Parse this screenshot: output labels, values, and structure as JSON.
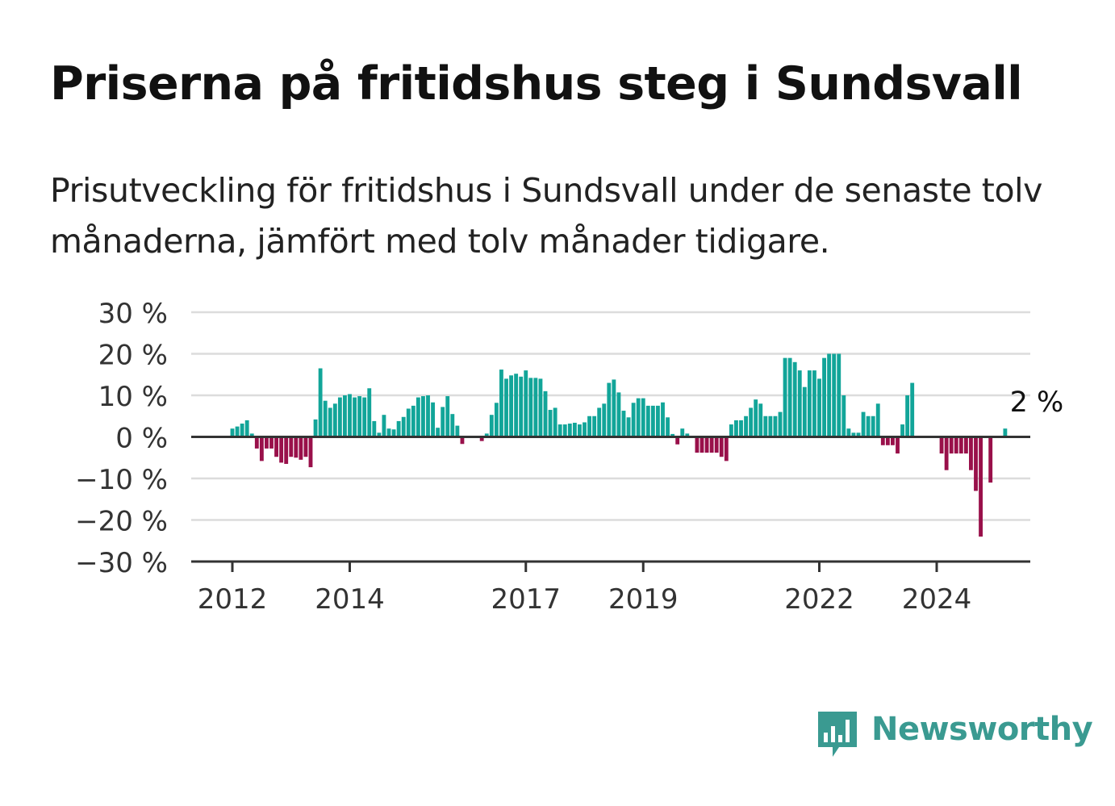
{
  "title": "Priserna på fritidshus steg i Sundsvall",
  "subtitle": "Prisutveckling för fritidshus i Sundsvall under de senaste tolv månaderna, jämfört med tolv månader tidigare.",
  "brand": {
    "name": "Newsworthy",
    "color": "#3a9a91"
  },
  "colors": {
    "positive": "#12a599",
    "negative": "#99104a",
    "grid": "#dcdcdc",
    "axis": "#333333"
  },
  "chart_data": {
    "type": "bar",
    "ylim": [
      -30,
      30
    ],
    "yticks": [
      30,
      20,
      10,
      0,
      -10,
      -20,
      -30
    ],
    "ytick_labels": [
      "30 %",
      "20 %",
      "10 %",
      "0 %",
      "−10 %",
      "−20 %",
      "−30 %"
    ],
    "xticks": [
      2012,
      2014,
      2017,
      2019,
      2022,
      2024
    ],
    "xtick_labels": [
      "2012",
      "2014",
      "2017",
      "2019",
      "2022",
      "2024"
    ],
    "x_start": 2012.0,
    "x_step": 0.08333,
    "values": [
      2.0,
      2.5,
      3.2,
      4.0,
      0.8,
      -2.8,
      -5.8,
      -2.8,
      -2.8,
      -4.8,
      -6.2,
      -6.5,
      -4.8,
      -5.0,
      -5.5,
      -4.8,
      -7.3,
      4.2,
      16.5,
      8.7,
      7.0,
      8.0,
      9.5,
      10.0,
      10.3,
      9.5,
      9.8,
      9.5,
      11.7,
      3.8,
      1.0,
      5.3,
      2.0,
      1.8,
      3.8,
      4.8,
      6.8,
      7.5,
      9.5,
      9.8,
      10.0,
      8.3,
      2.2,
      7.2,
      9.8,
      5.5,
      2.7,
      -1.7,
      0,
      0,
      0,
      -1.0,
      0.8,
      5.3,
      8.2,
      16.2,
      14.0,
      14.8,
      15.2,
      14.5,
      16.0,
      14.2,
      14.2,
      14.0,
      11.0,
      6.5,
      7.0,
      3.0,
      3.0,
      3.2,
      3.4,
      3.0,
      3.5,
      5.0,
      5.0,
      7.0,
      8.0,
      13.0,
      13.8,
      10.7,
      6.3,
      4.7,
      8.2,
      9.3,
      9.3,
      7.5,
      7.5,
      7.5,
      8.3,
      4.7,
      0.7,
      -1.8,
      2.0,
      0.8,
      0,
      -3.8,
      -3.8,
      -3.8,
      -3.8,
      -3.8,
      -4.8,
      -5.8,
      3.0,
      4.0,
      4.0,
      5.0,
      7.0,
      9.0,
      8.0,
      5.0,
      5.0,
      5.0,
      6.0,
      19.0,
      19.0,
      18.0,
      16.0,
      12.0,
      16.0,
      16.0,
      14.0,
      19.0,
      20.0,
      20.0,
      20.0,
      10.0,
      2.0,
      1.0,
      1.0,
      6.0,
      5.0,
      5.0,
      8.0,
      -2.0,
      -2.0,
      -2.0,
      -4.0,
      3.0,
      10.0,
      13.0,
      0,
      0,
      0,
      0,
      0,
      -4.0,
      -8.0,
      -4.0,
      -4.0,
      -4.0,
      -4.0,
      -8.0,
      -13.0,
      -24.0,
      0,
      -11.0,
      0,
      0,
      2.0
    ],
    "annotation": {
      "text": "2 %",
      "x_index": 165
    }
  }
}
